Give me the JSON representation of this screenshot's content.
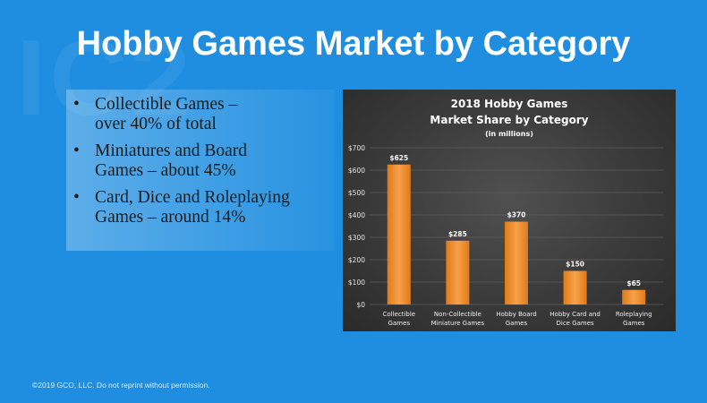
{
  "slide": {
    "title": "Hobby Games Market by Category",
    "bullets": [
      {
        "line1": "Collectible Games –",
        "line2": "over 40% of total"
      },
      {
        "line1": "Miniatures and Board",
        "line2": "Games – about 45%"
      },
      {
        "line1": "Card, Dice and Roleplaying",
        "line2": "Games – around 14%"
      }
    ],
    "footer": "©2019 GCO, LLC. Do not reprint without permission."
  },
  "chart_data": {
    "type": "bar",
    "title": "2018 Hobby Games",
    "title2": "Market Share by Category",
    "subtitle": "(in millions)",
    "categories": [
      [
        "Collectible",
        "Games"
      ],
      [
        "Non-Collectible",
        "Miniature Games"
      ],
      [
        "Hobby Board",
        "Games"
      ],
      [
        "Hobby Card and",
        "Dice Games"
      ],
      [
        "Roleplaying",
        "Games"
      ]
    ],
    "values": [
      625,
      285,
      370,
      150,
      65
    ],
    "data_labels": [
      "$625",
      "$285",
      "$370",
      "$150",
      "$65"
    ],
    "ylim": [
      0,
      700
    ],
    "yticks": [
      "$0",
      "$100",
      "$200",
      "$300",
      "$400",
      "$500",
      "$600",
      "$700"
    ],
    "grid": true,
    "colors": {
      "bar_top": "#f7a14a",
      "bar_bottom": "#e07a18",
      "grid": "#5c5c5c",
      "text": "#ffffff"
    }
  }
}
